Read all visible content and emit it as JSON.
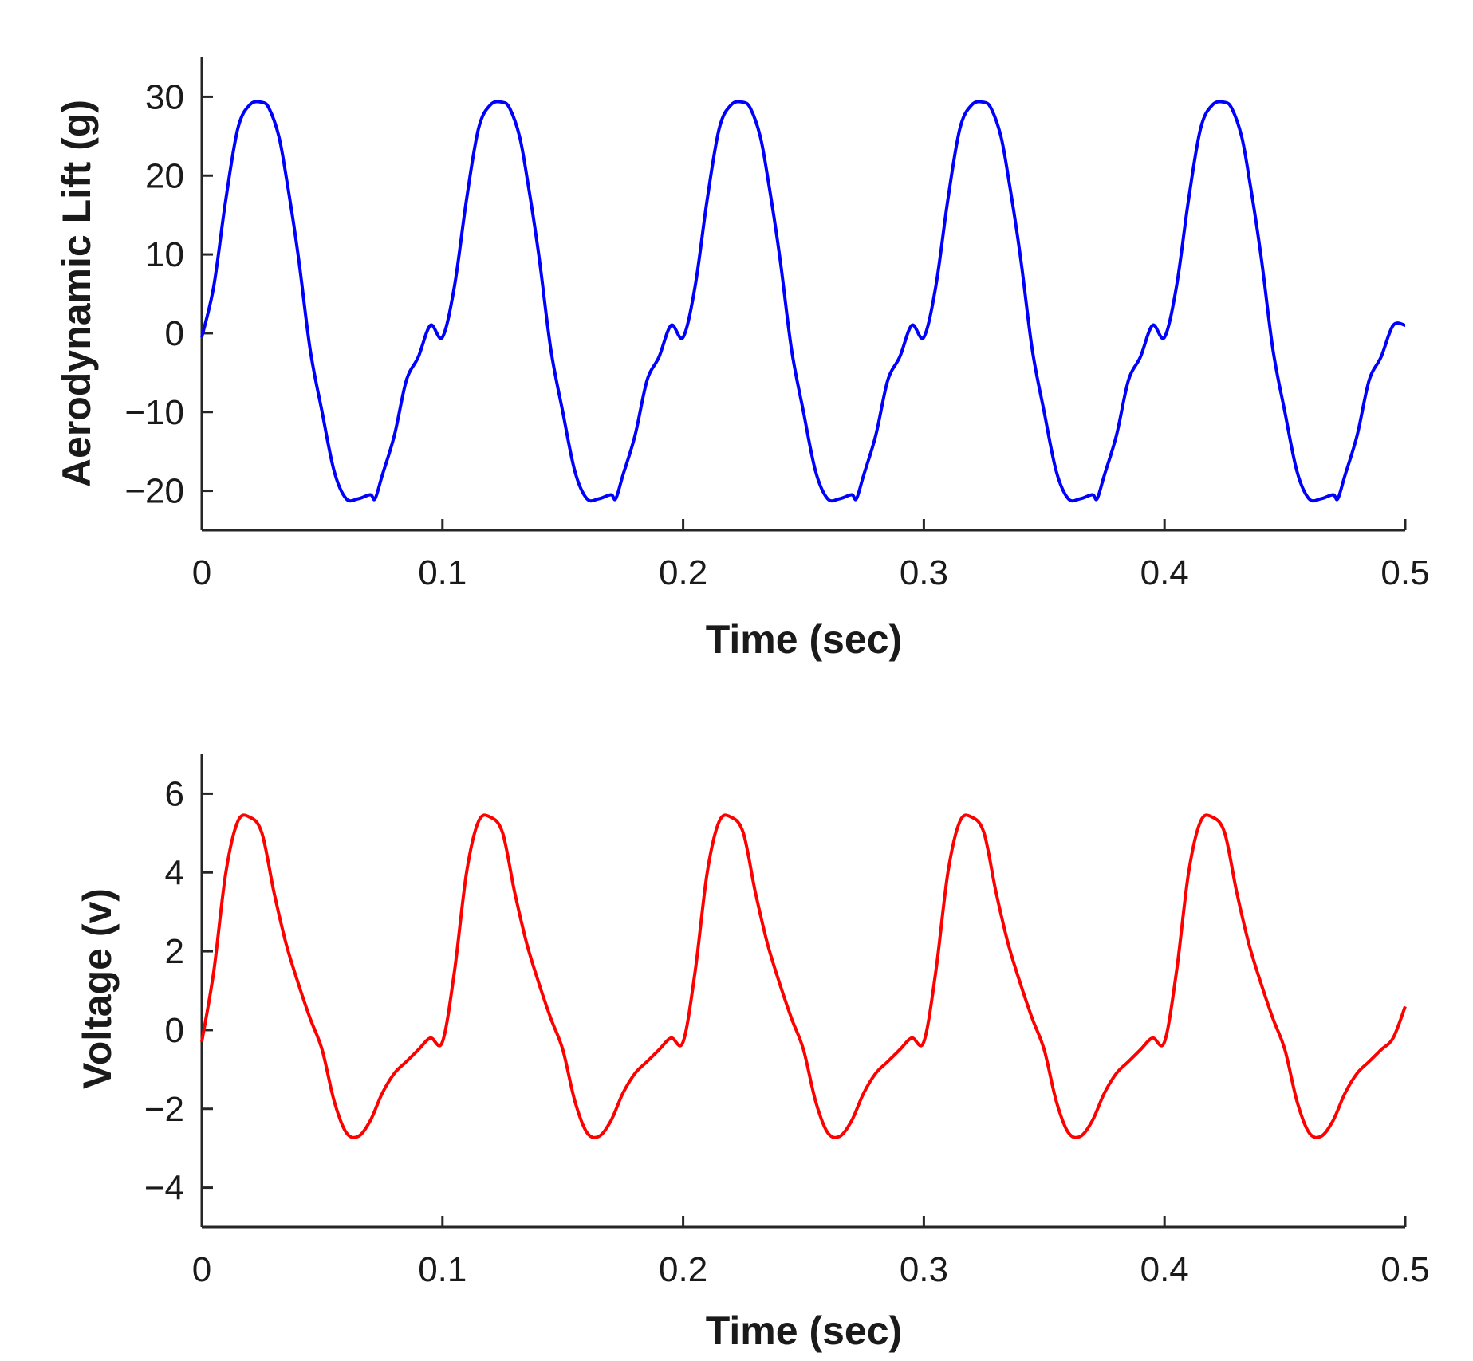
{
  "chart_data": [
    {
      "type": "line",
      "title": "",
      "xlabel": "Time (sec)",
      "ylabel": "Aerodynamic Lift (g)",
      "xlim": [
        0,
        0.5
      ],
      "ylim": [
        -25,
        35
      ],
      "xticks": [
        0,
        0.1,
        0.2,
        0.3,
        0.4,
        0.5
      ],
      "xtick_labels": [
        "0",
        "0.1",
        "0.2",
        "0.3",
        "0.4",
        "0.5"
      ],
      "yticks": [
        -20,
        -10,
        0,
        10,
        20,
        30
      ],
      "ytick_labels": [
        "−20",
        "−10",
        "0",
        "10",
        "20",
        "30"
      ],
      "grid": false,
      "series": [
        {
          "name": "Aerodynamic Lift",
          "color": "#0000ff",
          "period": 0.1,
          "cycle_x": [
            0,
            0.005,
            0.01,
            0.015,
            0.02,
            0.025,
            0.028,
            0.032,
            0.035,
            0.04,
            0.045,
            0.05,
            0.055,
            0.06,
            0.065,
            0.07,
            0.072,
            0.075,
            0.08,
            0.085,
            0.09,
            0.095,
            0.1
          ],
          "cycle_y": [
            -0.5,
            6,
            17,
            26,
            29,
            29.3,
            28.5,
            25,
            20,
            10,
            -2,
            -10,
            -17.5,
            -21,
            -21,
            -20.5,
            -21,
            -18,
            -13,
            -6,
            -3,
            1,
            -0.5
          ],
          "end_x": 0.5,
          "end_y": 1
        }
      ]
    },
    {
      "type": "line",
      "title": "",
      "xlabel": "Time (sec)",
      "ylabel": "Voltage (v)",
      "xlim": [
        0,
        0.5
      ],
      "ylim": [
        -5,
        7
      ],
      "xticks": [
        0,
        0.1,
        0.2,
        0.3,
        0.4,
        0.5
      ],
      "xtick_labels": [
        "0",
        "0.1",
        "0.2",
        "0.3",
        "0.4",
        "0.5"
      ],
      "yticks": [
        -4,
        -2,
        0,
        2,
        4,
        6
      ],
      "ytick_labels": [
        "−4",
        "−2",
        "0",
        "2",
        "4",
        "6"
      ],
      "grid": false,
      "series": [
        {
          "name": "Voltage",
          "color": "#ff0000",
          "period": 0.1,
          "cycle_x": [
            0,
            0.005,
            0.01,
            0.015,
            0.02,
            0.025,
            0.03,
            0.035,
            0.04,
            0.045,
            0.05,
            0.055,
            0.06,
            0.065,
            0.07,
            0.075,
            0.08,
            0.085,
            0.09,
            0.095,
            0.1
          ],
          "cycle_y": [
            -0.3,
            1.5,
            4,
            5.3,
            5.4,
            5.0,
            3.5,
            2.2,
            1.2,
            0.3,
            -0.5,
            -1.8,
            -2.6,
            -2.7,
            -2.3,
            -1.6,
            -1.1,
            -0.8,
            -0.5,
            -0.2,
            -0.3
          ],
          "end_x": 0.5,
          "end_y": 0.6
        }
      ]
    }
  ]
}
